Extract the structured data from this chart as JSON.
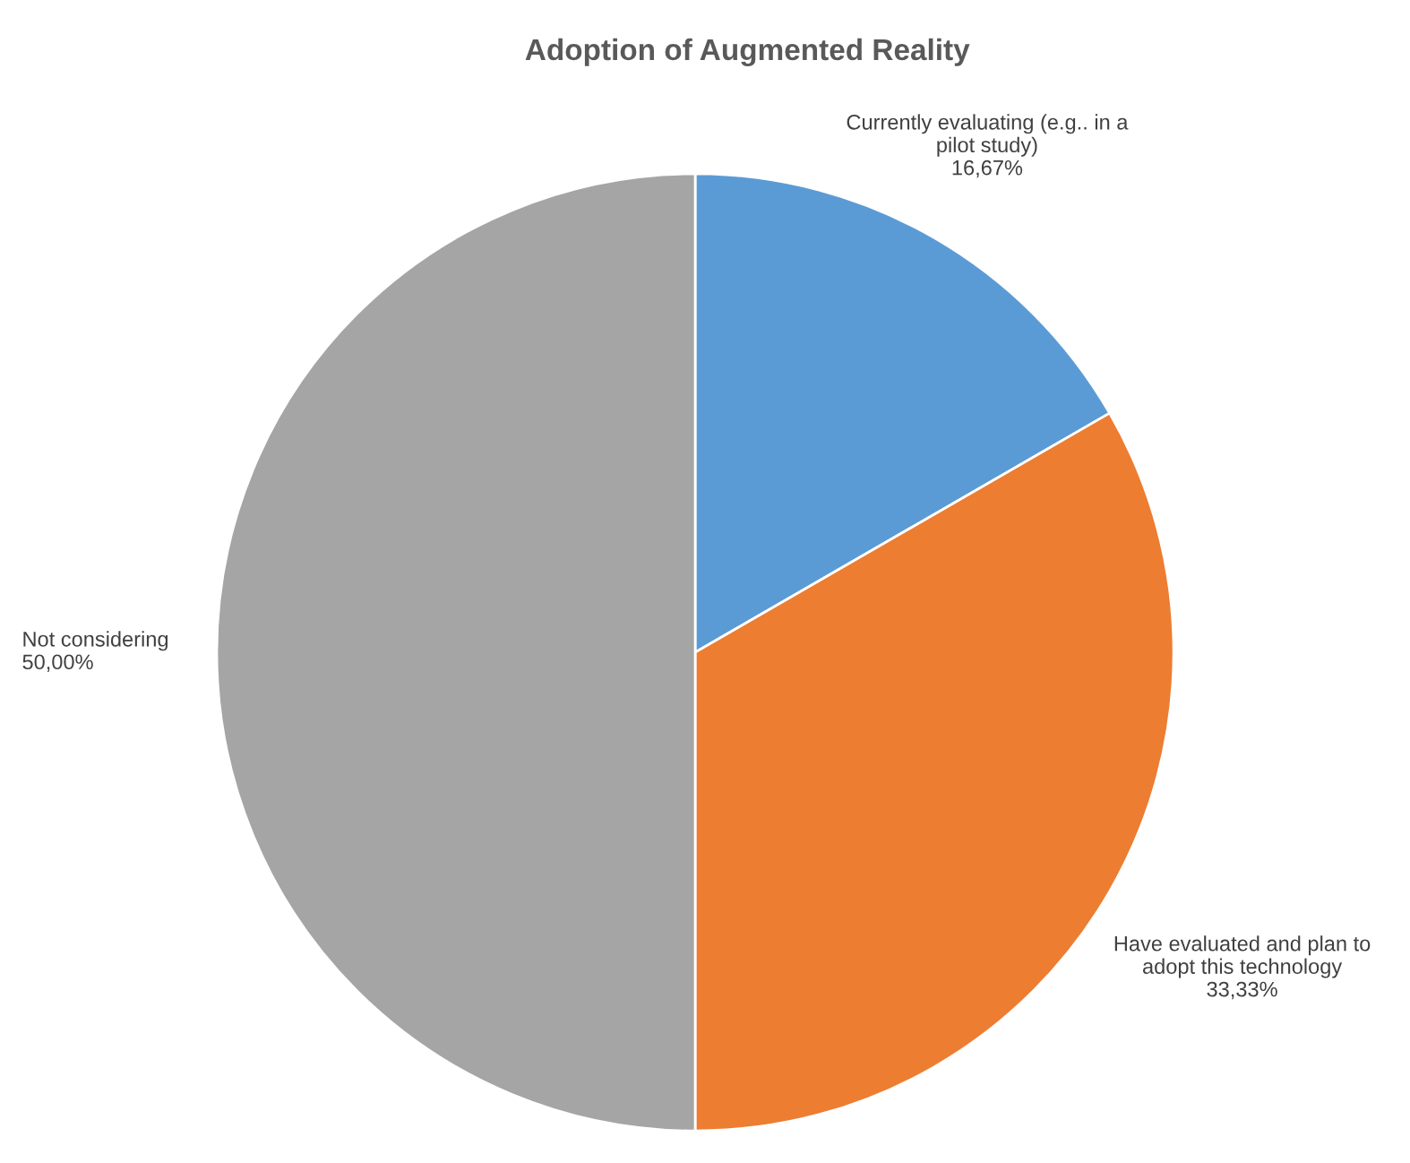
{
  "chart_data": {
    "type": "pie",
    "title": "Adoption of Augmented Reality",
    "categories": [
      "Currently evaluating (e.g.. in a\npilot study)",
      "Have evaluated and plan to\nadopt this technology",
      "Not considering"
    ],
    "values": [
      16.67,
      33.33,
      50.0
    ],
    "value_labels": [
      "16,67%",
      "33,33%",
      "50,00%"
    ],
    "colors": [
      "#5b9bd5",
      "#ed7d31",
      "#a5a5a5"
    ],
    "legend": false
  }
}
